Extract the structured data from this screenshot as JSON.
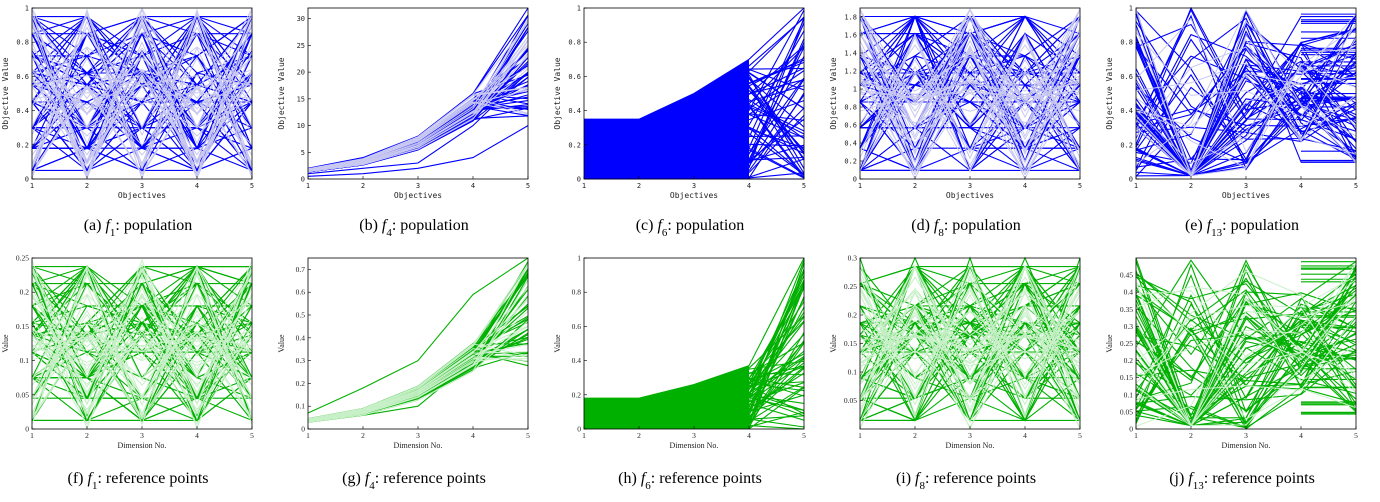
{
  "colors": {
    "population": "#0000ff",
    "reference": "#00b000",
    "population_fill": "#c8c8f0",
    "reference_fill": "#c8f0c8"
  },
  "chart_data": [
    {
      "id": "a",
      "type": "parallel-coordinates",
      "caption_prefix": "(a)",
      "caption_func": "f",
      "caption_sub": "1",
      "caption_suffix": ": population",
      "xlabel": "Objectives",
      "ylabel": "Objective Value",
      "xticks": [
        "1",
        "2",
        "3",
        "4",
        "5"
      ],
      "ylim": [
        0,
        1
      ],
      "yticks": [
        "0",
        "0.2",
        "0.4",
        "0.6",
        "0.8",
        "1"
      ],
      "color": "blue",
      "pattern": "zigzag",
      "x": [
        1,
        2,
        3,
        4,
        5
      ],
      "series": [
        {
          "values": [
            0.9,
            0.1,
            0.9,
            0.1,
            0.9
          ]
        },
        {
          "values": [
            0.55,
            0.95,
            0.55,
            0.95,
            0.55
          ]
        },
        {
          "values": [
            0.75,
            0.3,
            0.75,
            0.3,
            0.75
          ]
        }
      ]
    },
    {
      "id": "b",
      "type": "parallel-coordinates",
      "caption_prefix": "(b)",
      "caption_func": "f",
      "caption_sub": "4",
      "caption_suffix": ": population",
      "xlabel": "Objectives",
      "ylabel": "Objective Value",
      "xticks": [
        "1",
        "2",
        "3",
        "4",
        "5"
      ],
      "ylim": [
        0,
        32
      ],
      "yticks": [
        "0",
        "5",
        "10",
        "15",
        "20",
        "25",
        "30"
      ],
      "color": "blue",
      "pattern": "growth",
      "x": [
        1,
        2,
        3,
        4,
        5
      ],
      "series": [
        {
          "values": [
            2,
            4,
            8,
            16,
            32
          ]
        },
        {
          "values": [
            0.5,
            1,
            2,
            4,
            10
          ]
        },
        {
          "values": [
            1,
            2,
            3,
            10,
            20
          ]
        }
      ]
    },
    {
      "id": "c",
      "type": "parallel-coordinates",
      "caption_prefix": "(c)",
      "caption_func": "f",
      "caption_sub": "6",
      "caption_suffix": ": population",
      "xlabel": "Objectives",
      "ylabel": "Objective Value",
      "xticks": [
        "1",
        "2",
        "3",
        "4",
        "5"
      ],
      "ylim": [
        0,
        1
      ],
      "yticks": [
        "0",
        "0.2",
        "0.4",
        "0.6",
        "0.8",
        "1"
      ],
      "color": "blue",
      "pattern": "f6",
      "x": [
        1,
        2,
        3,
        4,
        5
      ],
      "series": [
        {
          "values": [
            0.35,
            0.35,
            0.5,
            0.7,
            1
          ]
        },
        {
          "values": [
            0,
            0,
            0,
            0,
            0
          ]
        }
      ]
    },
    {
      "id": "d",
      "type": "parallel-coordinates",
      "caption_prefix": "(d)",
      "caption_func": "f",
      "caption_sub": "8",
      "caption_suffix": ": population",
      "xlabel": "Objectives",
      "ylabel": "Objective Value",
      "xticks": [
        "1",
        "2",
        "3",
        "4",
        "5"
      ],
      "ylim": [
        0,
        1.9
      ],
      "yticks": [
        "0",
        "0.2",
        "0.4",
        "0.6",
        "0.8",
        "1",
        "1.2",
        "1.4",
        "1.6",
        "1.8"
      ],
      "color": "blue",
      "pattern": "zigzag",
      "x": [
        1,
        2,
        3,
        4,
        5
      ],
      "series": [
        {
          "values": [
            1.8,
            0.2,
            1.8,
            0.2,
            1.8
          ]
        },
        {
          "values": [
            0.6,
            1.6,
            0.6,
            1.6,
            0.6
          ]
        }
      ]
    },
    {
      "id": "e",
      "type": "parallel-coordinates",
      "caption_prefix": "(e)",
      "caption_func": "f",
      "caption_sub": "13",
      "caption_suffix": ": population",
      "xlabel": "Objectives",
      "ylabel": "Objective Value",
      "xticks": [
        "1",
        "2",
        "3",
        "4",
        "5"
      ],
      "ylim": [
        0,
        1
      ],
      "yticks": [
        "0",
        "0.2",
        "0.4",
        "0.6",
        "0.8",
        "1"
      ],
      "color": "blue",
      "pattern": "f13",
      "x": [
        1,
        2,
        3,
        4,
        5
      ],
      "series": [
        {
          "values": [
            0.9,
            0.05,
            0.9,
            0.1,
            0.1
          ]
        },
        {
          "values": [
            0.2,
            1,
            0.4,
            0.95,
            0.95
          ]
        }
      ]
    },
    {
      "id": "f",
      "type": "parallel-coordinates",
      "caption_prefix": "(f)",
      "caption_func": "f",
      "caption_sub": "1",
      "caption_suffix": ": reference points",
      "xlabel": "Dimension No.",
      "ylabel": "Value",
      "xticks": [
        "1",
        "2",
        "3",
        "4",
        "5"
      ],
      "ylim": [
        0,
        0.25
      ],
      "yticks": [
        "0",
        "0.05",
        "0.1",
        "0.15",
        "0.2",
        "0.25"
      ],
      "color": "green",
      "pattern": "zigzag",
      "x": [
        1,
        2,
        3,
        4,
        5
      ],
      "series": [
        {
          "values": [
            0.23,
            0.02,
            0.23,
            0.02,
            0.23
          ]
        },
        {
          "values": [
            0.14,
            0.23,
            0.14,
            0.23,
            0.14
          ]
        }
      ]
    },
    {
      "id": "g",
      "type": "parallel-coordinates",
      "caption_prefix": "(g)",
      "caption_func": "f",
      "caption_sub": "4",
      "caption_suffix": ": reference points",
      "xlabel": "Dimension No.",
      "ylabel": "Value",
      "xticks": [
        "1",
        "2",
        "3",
        "4",
        "5"
      ],
      "ylim": [
        0,
        0.75
      ],
      "yticks": [
        "0",
        "0.1",
        "0.2",
        "0.3",
        "0.4",
        "0.5",
        "0.6",
        "0.7"
      ],
      "color": "green",
      "pattern": "growth",
      "x": [
        1,
        2,
        3,
        4,
        5
      ],
      "series": [
        {
          "values": [
            0.07,
            0.18,
            0.3,
            0.59,
            0.75
          ]
        },
        {
          "values": [
            0.03,
            0.06,
            0.1,
            0.3,
            0.4
          ]
        }
      ]
    },
    {
      "id": "h",
      "type": "parallel-coordinates",
      "caption_prefix": "(h)",
      "caption_func": "f",
      "caption_sub": "6",
      "caption_suffix": ": reference points",
      "xlabel": "Dimension No.",
      "ylabel": "Value",
      "xticks": [
        "1",
        "2",
        "3",
        "4",
        "5"
      ],
      "ylim": [
        0,
        1
      ],
      "yticks": [
        "0",
        "0.2",
        "0.4",
        "0.6",
        "0.8",
        "1"
      ],
      "color": "green",
      "pattern": "f6",
      "x": [
        1,
        2,
        3,
        4,
        5
      ],
      "series": [
        {
          "values": [
            0.18,
            0.18,
            0.26,
            0.37,
            1
          ]
        },
        {
          "values": [
            0.02,
            0.02,
            0.02,
            0.02,
            0
          ]
        }
      ]
    },
    {
      "id": "i",
      "type": "parallel-coordinates",
      "caption_prefix": "(i)",
      "caption_func": "f",
      "caption_sub": "8",
      "caption_suffix": ": reference points",
      "xlabel": "Dimension No.",
      "ylabel": "Value",
      "xticks": [
        "1",
        "2",
        "3",
        "4",
        "5"
      ],
      "ylim": [
        0,
        0.3
      ],
      "yticks": [
        "0.05",
        "0.1",
        "0.15",
        "0.2",
        "0.25",
        "0.3"
      ],
      "color": "green",
      "pattern": "zigzag",
      "x": [
        1,
        2,
        3,
        4,
        5
      ],
      "series": [
        {
          "values": [
            0.3,
            0.02,
            0.3,
            0.02,
            0.3
          ]
        },
        {
          "values": [
            0.08,
            0.3,
            0.08,
            0.3,
            0.08
          ]
        }
      ]
    },
    {
      "id": "j",
      "type": "parallel-coordinates",
      "caption_prefix": "(j)",
      "caption_func": "f",
      "caption_sub": "13",
      "caption_suffix": ": reference points",
      "xlabel": "Dimension No.",
      "ylabel": "Value",
      "xticks": [
        "1",
        "2",
        "3",
        "4",
        "5"
      ],
      "ylim": [
        0,
        0.5
      ],
      "yticks": [
        "0",
        "0.05",
        "0.1",
        "0.15",
        "0.2",
        "0.25",
        "0.3",
        "0.35",
        "0.4",
        "0.45"
      ],
      "color": "green",
      "pattern": "f13",
      "x": [
        1,
        2,
        3,
        4,
        5
      ],
      "series": [
        {
          "values": [
            0.33,
            0.02,
            0.48,
            0.22,
            0.47
          ]
        },
        {
          "values": [
            0.02,
            0.48,
            0.05,
            0.2,
            0.05
          ]
        }
      ]
    }
  ]
}
